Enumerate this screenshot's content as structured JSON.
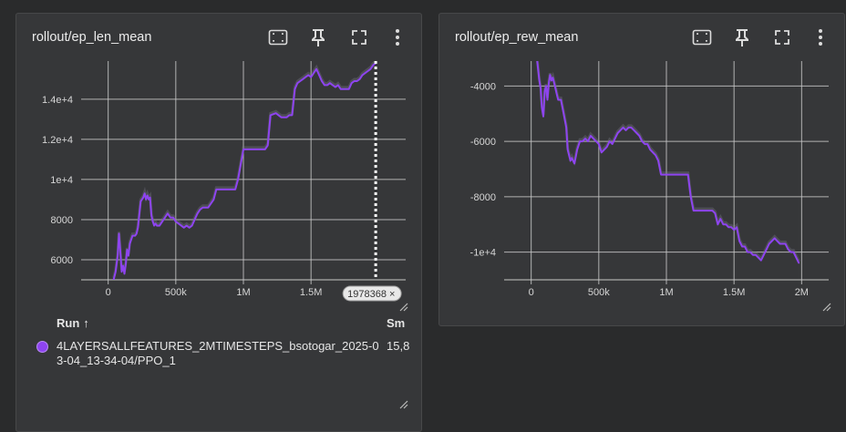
{
  "cards": [
    {
      "title": "rollout/ep_len_mean",
      "hover_label": "1978368",
      "hover_close": "×"
    },
    {
      "title": "rollout/ep_rew_mean"
    }
  ],
  "legend": {
    "run_header": "Run",
    "sort_indicator": "↑",
    "smoothed_header": "Sm",
    "run_name": "4LAYERSALLFEATURES_2MTIMESTEPS_bsotogar_2025-03-04_13-34-04/PPO_1",
    "smoothed_value": "15,8",
    "run_color": "#8e44f0"
  },
  "toolbar_icons": [
    "fit-domain-icon",
    "pin-icon",
    "fullscreen-icon",
    "more-vert-icon"
  ],
  "colors": {
    "line": "#8e44f0",
    "raw_line": "#7a7a8a",
    "grid": "#c8c8c8",
    "background": "#363739"
  },
  "chart_data": [
    {
      "type": "line",
      "title": "rollout/ep_len_mean",
      "x_ticks": [
        "0",
        "500k",
        "1M",
        "1.5M"
      ],
      "x_tick_values": [
        0,
        500000,
        1000000,
        1500000
      ],
      "y_ticks": [
        "6000",
        "8000",
        "1e+4",
        "1.2e+4",
        "1.4e+4"
      ],
      "y_tick_values": [
        6000,
        8000,
        10000,
        12000,
        14000
      ],
      "xlim": [
        -200000,
        2200000
      ],
      "ylim": [
        5000,
        15900
      ],
      "grid": true,
      "hover_x": 1978368,
      "series": [
        {
          "x": [
            40000,
            55000,
            70000,
            80000,
            90000,
            100000,
            110000,
            120000,
            130000,
            140000,
            150000,
            160000,
            170000,
            180000,
            190000,
            200000,
            210000,
            220000,
            240000,
            260000,
            270000,
            280000,
            290000,
            300000,
            310000,
            320000,
            330000,
            340000,
            350000,
            360000,
            380000,
            400000,
            420000,
            440000,
            460000,
            480000,
            500000,
            520000,
            540000,
            560000,
            580000,
            600000,
            620000,
            640000,
            660000,
            680000,
            700000,
            720000,
            740000,
            760000,
            780000,
            800000,
            820000,
            860000,
            900000,
            940000,
            960000,
            1000000,
            1040000,
            1080000,
            1120000,
            1160000,
            1180000,
            1200000,
            1240000,
            1280000,
            1320000,
            1340000,
            1360000,
            1380000,
            1400000,
            1420000,
            1440000,
            1460000,
            1480000,
            1500000,
            1520000,
            1540000,
            1560000,
            1580000,
            1600000,
            1620000,
            1640000,
            1660000,
            1680000,
            1700000,
            1720000,
            1740000,
            1760000,
            1780000,
            1800000,
            1820000,
            1840000,
            1860000,
            1880000,
            1900000,
            1920000,
            1940000,
            1960000,
            1978368
          ],
          "y": [
            5000,
            5400,
            6200,
            7300,
            6400,
            5400,
            5700,
            5300,
            5800,
            6500,
            6200,
            6800,
            7000,
            7200,
            7200,
            7200,
            7300,
            7600,
            8900,
            9100,
            9300,
            9000,
            9200,
            9000,
            9100,
            8200,
            7900,
            7700,
            7800,
            7700,
            7700,
            7900,
            8100,
            8300,
            8100,
            8100,
            7900,
            7800,
            7700,
            7600,
            7700,
            7600,
            7700,
            8000,
            8300,
            8500,
            8600,
            8600,
            8600,
            8800,
            9000,
            9500,
            9500,
            9500,
            9500,
            9500,
            10000,
            11500,
            11500,
            11500,
            11500,
            11500,
            11700,
            13200,
            13300,
            13100,
            13100,
            13200,
            13200,
            14500,
            14800,
            14900,
            15000,
            15100,
            15200,
            15100,
            15300,
            15500,
            15200,
            14900,
            14700,
            14700,
            14800,
            14700,
            14600,
            14700,
            14500,
            14500,
            14500,
            14500,
            14800,
            14900,
            14900,
            15000,
            15200,
            15300,
            15400,
            15500,
            15700,
            15800
          ]
        }
      ]
    },
    {
      "type": "line",
      "title": "rollout/ep_rew_mean",
      "x_ticks": [
        "0",
        "500k",
        "1M",
        "1.5M",
        "2M"
      ],
      "x_tick_values": [
        0,
        500000,
        1000000,
        1500000,
        2000000
      ],
      "y_ticks": [
        "-4000",
        "-6000",
        "-8000",
        "-1e+4"
      ],
      "y_tick_values": [
        -4000,
        -6000,
        -8000,
        -10000
      ],
      "xlim": [
        -200000,
        2200000
      ],
      "ylim": [
        -11000,
        -3100
      ],
      "grid": true,
      "series": [
        {
          "x": [
            45000,
            60000,
            70000,
            75000,
            80000,
            90000,
            100000,
            110000,
            120000,
            130000,
            140000,
            150000,
            160000,
            170000,
            180000,
            190000,
            200000,
            220000,
            240000,
            260000,
            270000,
            280000,
            290000,
            300000,
            320000,
            340000,
            360000,
            380000,
            400000,
            420000,
            440000,
            460000,
            480000,
            500000,
            520000,
            540000,
            560000,
            580000,
            600000,
            620000,
            640000,
            660000,
            680000,
            700000,
            720000,
            740000,
            760000,
            780000,
            800000,
            820000,
            840000,
            860000,
            880000,
            900000,
            920000,
            940000,
            960000,
            1000000,
            1040000,
            1080000,
            1120000,
            1160000,
            1180000,
            1200000,
            1240000,
            1280000,
            1320000,
            1340000,
            1360000,
            1380000,
            1400000,
            1420000,
            1440000,
            1460000,
            1480000,
            1500000,
            1520000,
            1540000,
            1560000,
            1580000,
            1600000,
            1620000,
            1640000,
            1660000,
            1680000,
            1700000,
            1720000,
            1740000,
            1760000,
            1780000,
            1800000,
            1820000,
            1840000,
            1860000,
            1880000,
            1900000,
            1920000,
            1940000,
            1960000,
            1980000
          ],
          "y": [
            -3100,
            -3800,
            -4100,
            -4500,
            -4800,
            -5100,
            -4200,
            -4000,
            -4500,
            -3900,
            -3600,
            -3800,
            -3700,
            -3900,
            -4100,
            -4300,
            -4500,
            -4500,
            -5000,
            -5500,
            -6300,
            -6500,
            -6700,
            -6600,
            -6800,
            -6300,
            -6000,
            -6000,
            -5900,
            -6000,
            -5800,
            -5900,
            -6000,
            -6100,
            -6400,
            -6300,
            -6200,
            -6000,
            -6100,
            -5900,
            -5700,
            -5600,
            -5500,
            -5600,
            -5500,
            -5500,
            -5600,
            -5700,
            -5800,
            -6000,
            -6100,
            -6100,
            -6300,
            -6400,
            -6500,
            -6700,
            -7200,
            -7200,
            -7200,
            -7200,
            -7200,
            -7200,
            -8000,
            -8500,
            -8500,
            -8500,
            -8500,
            -8500,
            -8600,
            -9000,
            -8800,
            -9000,
            -9000,
            -9100,
            -9100,
            -9200,
            -9100,
            -9600,
            -9800,
            -9800,
            -10000,
            -10000,
            -10100,
            -10100,
            -10200,
            -10300,
            -10100,
            -9900,
            -9700,
            -9600,
            -9500,
            -9600,
            -9700,
            -9700,
            -9700,
            -9900,
            -10000,
            -10000,
            -10200,
            -10400
          ]
        }
      ]
    }
  ]
}
